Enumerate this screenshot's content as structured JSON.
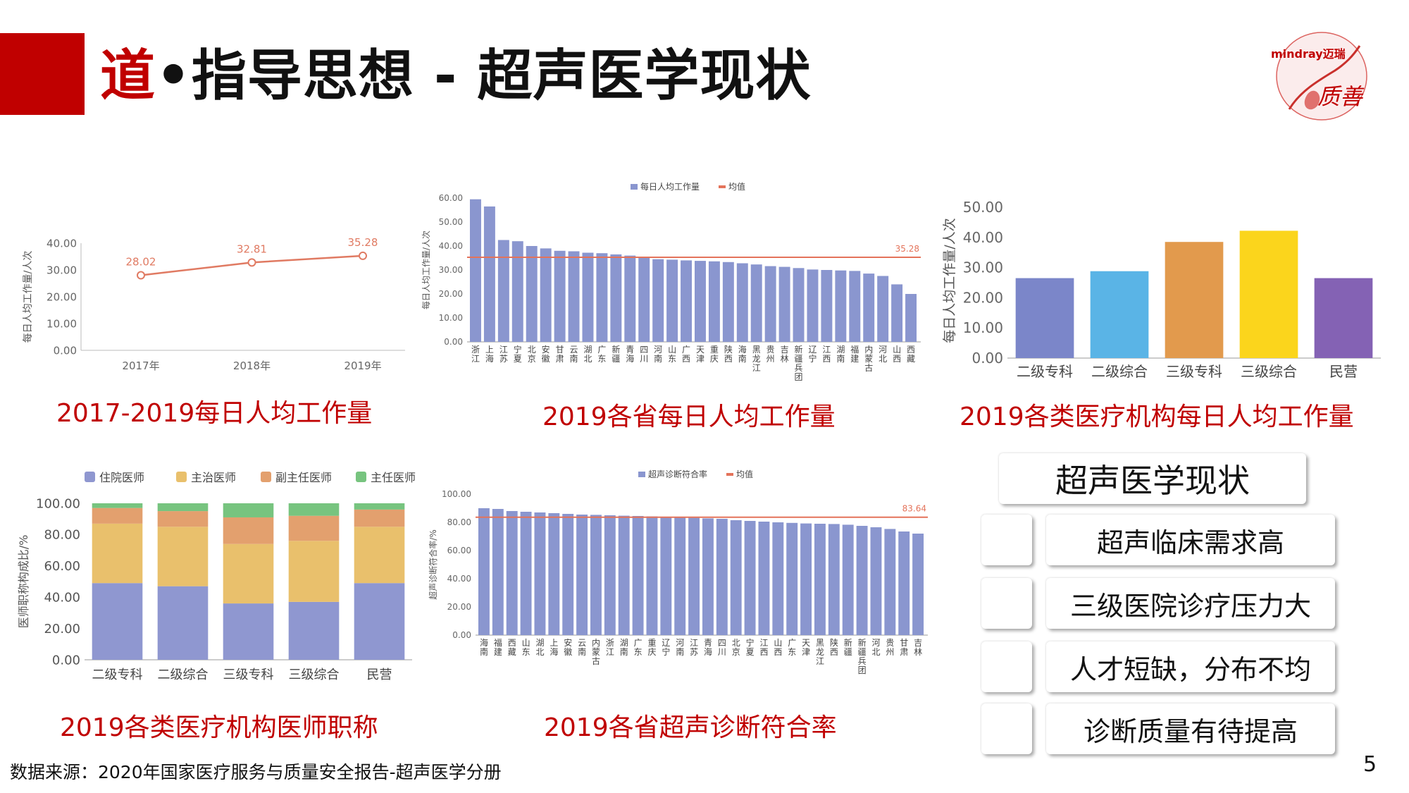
{
  "header": {
    "title_highlight": "道",
    "title_rest": "•指导思想 - 超声医学现状",
    "logo_brand": "mindray迈瑞",
    "logo_script": "质善"
  },
  "captions": {
    "c1": "2017-2019每日人均工作量",
    "c2": "2019各省每日人均工作量",
    "c3": "2019各类医疗机构每日人均工作量",
    "c4": "2019各类医疗机构医师职称",
    "c5": "2019各省超声诊断符合率"
  },
  "summary": {
    "title": "超声医学现状",
    "items": [
      "超声临床需求高",
      "三级医院诊疗压力大",
      "人才短缺，分布不均",
      "诊断质量有待提高"
    ]
  },
  "footer": {
    "source": "数据来源：2020年国家医疗服务与质量安全报告-超声医学分册",
    "page_number": "5"
  },
  "colors": {
    "accent_red": "#c00000",
    "blue_bar": "#8a96cf",
    "orange_line": "#e4735a"
  },
  "chart_data": [
    {
      "id": "trend",
      "type": "line",
      "x": [
        "2017年",
        "2018年",
        "2019年"
      ],
      "values": [
        28.02,
        32.81,
        35.28
      ],
      "ylabel": "每日人均工作量/人次",
      "ylim": [
        0,
        40
      ],
      "yticks": [
        "0.00",
        "10.00",
        "20.00",
        "30.00",
        "40.00"
      ],
      "grid": false
    },
    {
      "id": "province_workload",
      "type": "bar",
      "categories": [
        "浙江",
        "上海",
        "江苏",
        "宁夏",
        "北京",
        "安徽",
        "甘肃",
        "云南",
        "湖北",
        "广东",
        "新疆",
        "青海",
        "四川",
        "河南",
        "山东",
        "广西",
        "天津",
        "重庆",
        "陕西",
        "海南",
        "黑龙江",
        "贵州",
        "吉林",
        "新疆兵团",
        "辽宁",
        "江西",
        "湖南",
        "福建",
        "内蒙古",
        "河北",
        "山西",
        "西藏"
      ],
      "series": [
        {
          "name": "每日人均工作量",
          "values": [
            59.5,
            56.5,
            42.5,
            42,
            40,
            39,
            38,
            37.8,
            37.2,
            37,
            36.5,
            36,
            35,
            34.5,
            34.3,
            34,
            33.8,
            33.6,
            33.3,
            32.8,
            32.3,
            31.6,
            31.3,
            30.8,
            30.2,
            30,
            29.8,
            29.6,
            28.5,
            27.5,
            24,
            20
          ]
        },
        {
          "name": "均值",
          "type": "line",
          "value": 35.28
        }
      ],
      "mean_label": "35.28",
      "ylabel": "每日人均工作量/人次",
      "ylim": [
        0,
        60
      ],
      "yticks": [
        "0.00",
        "10.00",
        "20.00",
        "30.00",
        "40.00",
        "50.00",
        "60.00"
      ],
      "legend": "top-center"
    },
    {
      "id": "institution_workload",
      "type": "bar",
      "categories": [
        "二级专科",
        "二级综合",
        "三级专科",
        "三级综合",
        "民营"
      ],
      "values": [
        26.5,
        28.8,
        38.5,
        42.2,
        26.5
      ],
      "colors": [
        "#7b86c9",
        "#5ab4e6",
        "#e29a4d",
        "#fbd51c",
        "#8462b4"
      ],
      "ylabel": "每日人均工作量/人次",
      "ylim": [
        0,
        50
      ],
      "yticks": [
        "0.00",
        "10.00",
        "20.00",
        "30.00",
        "40.00",
        "50.00"
      ]
    },
    {
      "id": "physician_titles",
      "type": "bar",
      "stacked": true,
      "categories": [
        "二级专科",
        "二级综合",
        "三级专科",
        "三级综合",
        "民营"
      ],
      "series": [
        {
          "name": "住院医师",
          "color": "#8f97d0",
          "values": [
            49,
            47,
            36,
            37,
            49
          ]
        },
        {
          "name": "主治医师",
          "color": "#e9c06c",
          "values": [
            38,
            38,
            38,
            39,
            36
          ]
        },
        {
          "name": "副主任医师",
          "color": "#e3a06e",
          "values": [
            10,
            10,
            17,
            16,
            11
          ]
        },
        {
          "name": "主任医师",
          "color": "#77c47f",
          "values": [
            3,
            5,
            9,
            8,
            4
          ]
        }
      ],
      "ylabel": "医师职称构成比/%",
      "ylim": [
        0,
        100
      ],
      "yticks": [
        "0.00",
        "20.00",
        "40.00",
        "60.00",
        "80.00",
        "100.00"
      ],
      "legend": "top"
    },
    {
      "id": "diagnosis_accuracy",
      "type": "bar",
      "categories": [
        "海南",
        "福建",
        "西藏",
        "山东",
        "湖北",
        "上海",
        "安徽",
        "云南",
        "内蒙古",
        "浙江",
        "湖南",
        "广东",
        "重庆",
        "辽宁",
        "河南",
        "江苏",
        "青海",
        "四川",
        "北京",
        "宁夏",
        "江西",
        "山西",
        "广东",
        "天津",
        "黑龙江",
        "陕西",
        "新疆",
        "新疆兵团",
        "河北",
        "贵州",
        "甘肃",
        "吉林"
      ],
      "series": [
        {
          "name": "超声诊断符合率",
          "values": [
            90,
            89.5,
            88,
            87.5,
            87,
            86.5,
            86,
            85.5,
            85.3,
            85,
            84.7,
            84.5,
            84.2,
            83.8,
            83.5,
            83.2,
            82.8,
            82.5,
            81.5,
            81,
            80.5,
            80,
            79.6,
            79.2,
            79,
            78.8,
            78.3,
            77.5,
            76.5,
            75.3,
            73.5,
            72
          ]
        },
        {
          "name": "均值",
          "type": "line",
          "value": 83.64
        }
      ],
      "mean_label": "83.64",
      "ylabel": "超声诊断符合率/%",
      "ylim": [
        0,
        100
      ],
      "yticks": [
        "0.00",
        "20.00",
        "40.00",
        "60.00",
        "80.00",
        "100.00"
      ],
      "legend": "top-center"
    }
  ]
}
